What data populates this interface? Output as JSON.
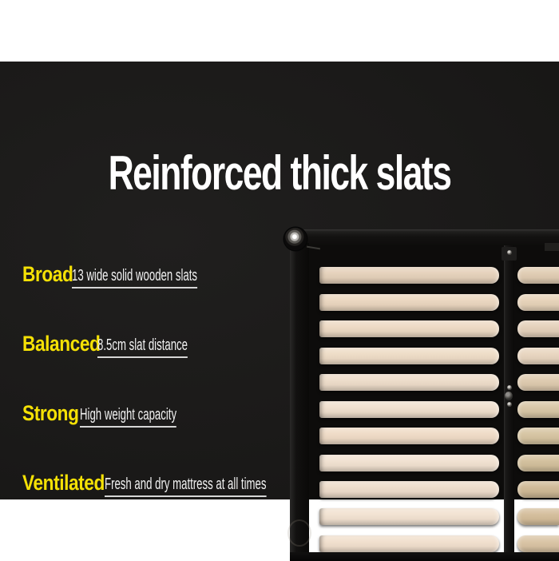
{
  "title": "Reinforced thick slats",
  "features": [
    {
      "label": "Broad",
      "description": "13 wide solid wooden slats"
    },
    {
      "label": "Balanced",
      "description": "8.5cm slat distance"
    },
    {
      "label": "Strong",
      "description": "High weight capacity"
    },
    {
      "label": "Ventilated",
      "description": "Fresh and dry mattress at all times"
    }
  ],
  "colors": {
    "accent_yellow": "#f5e105",
    "panel_dark": "#1b1a19",
    "band_white": "#ffffff",
    "headline_white": "#ffffff",
    "underline_gray": "#d6d6d6",
    "frame_black": "#131211",
    "photo_interior": "#0d0c0b"
  },
  "photo": {
    "subject": "black metal bed frame base with wooden slats, caster wheel and centre support rail",
    "slat_count_visible": 11,
    "left_slat_colors": [
      "#e5d1ba",
      "#ead6bf",
      "#edd9c3",
      "#eedcc6",
      "#eddcc9",
      "#f0dfcd",
      "#efdbc6",
      "#f1e1d0",
      "#eedccb",
      "#f2e2d1",
      "#f1dfcd"
    ],
    "right_slat_colors": [
      "#e0ccb2",
      "#e6d2b8",
      "#e4d0ba",
      "#e8d5bf",
      "#decaae",
      "#d8c6a5",
      "#d6c4a1",
      "#d2bf9b",
      "#cfb995",
      "#d4bd9a",
      "#d9c3a3"
    ]
  }
}
